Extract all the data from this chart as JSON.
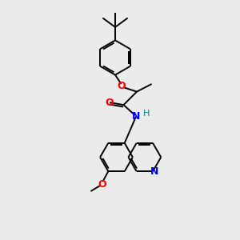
{
  "background_color": "#ebebeb",
  "bond_color": "#000000",
  "atom_colors": {
    "O": "#ff0000",
    "N": "#0000ff",
    "H": "#008080",
    "C": "#000000"
  },
  "figsize": [
    3.0,
    3.0
  ],
  "dpi": 100
}
